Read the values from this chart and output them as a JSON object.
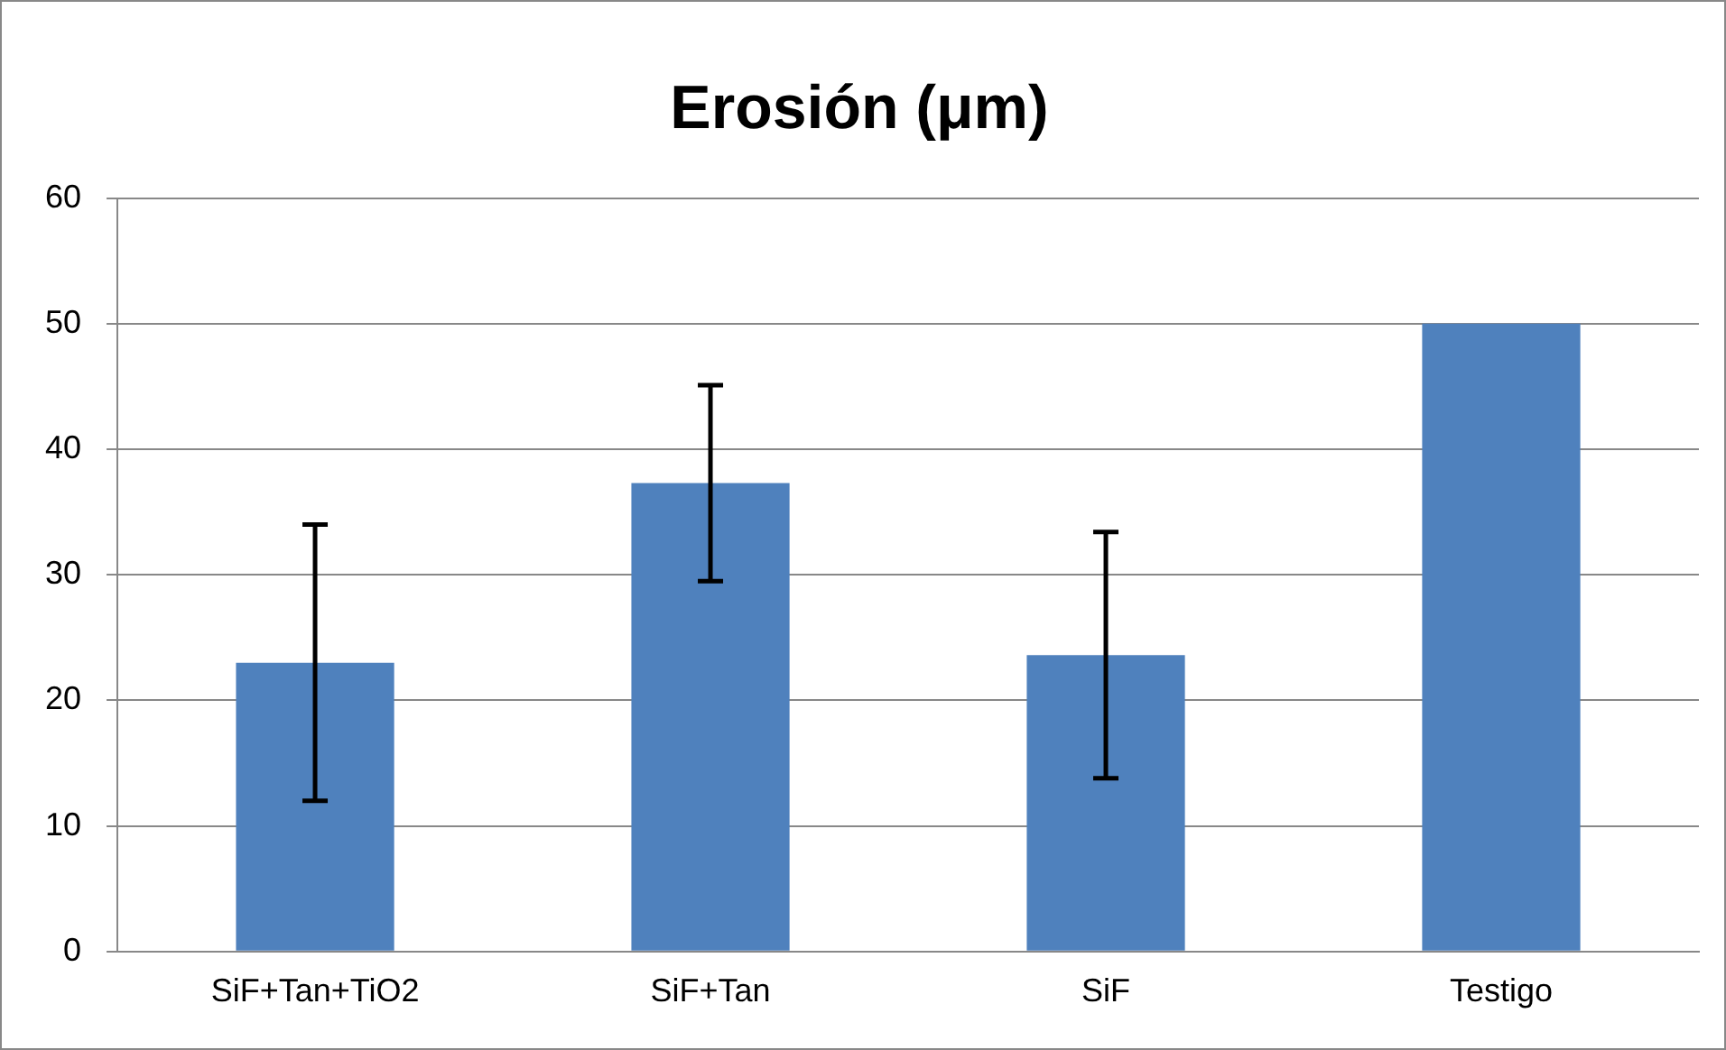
{
  "chart_data": {
    "type": "bar",
    "title": "Erosión (μm)",
    "categories": [
      "SiF+Tan+TiO2",
      "SiF+Tan",
      "SiF",
      "Testigo"
    ],
    "values": [
      23.0,
      37.3,
      23.6,
      50
    ],
    "errors": [
      [
        12.0,
        34.0
      ],
      [
        29.5,
        45.1
      ],
      [
        13.8,
        33.4
      ],
      null
    ],
    "color": "#4f81bd",
    "ylim": [
      0,
      60
    ],
    "yticks": [
      0,
      10,
      20,
      30,
      40,
      50,
      60
    ],
    "grid": "y"
  }
}
